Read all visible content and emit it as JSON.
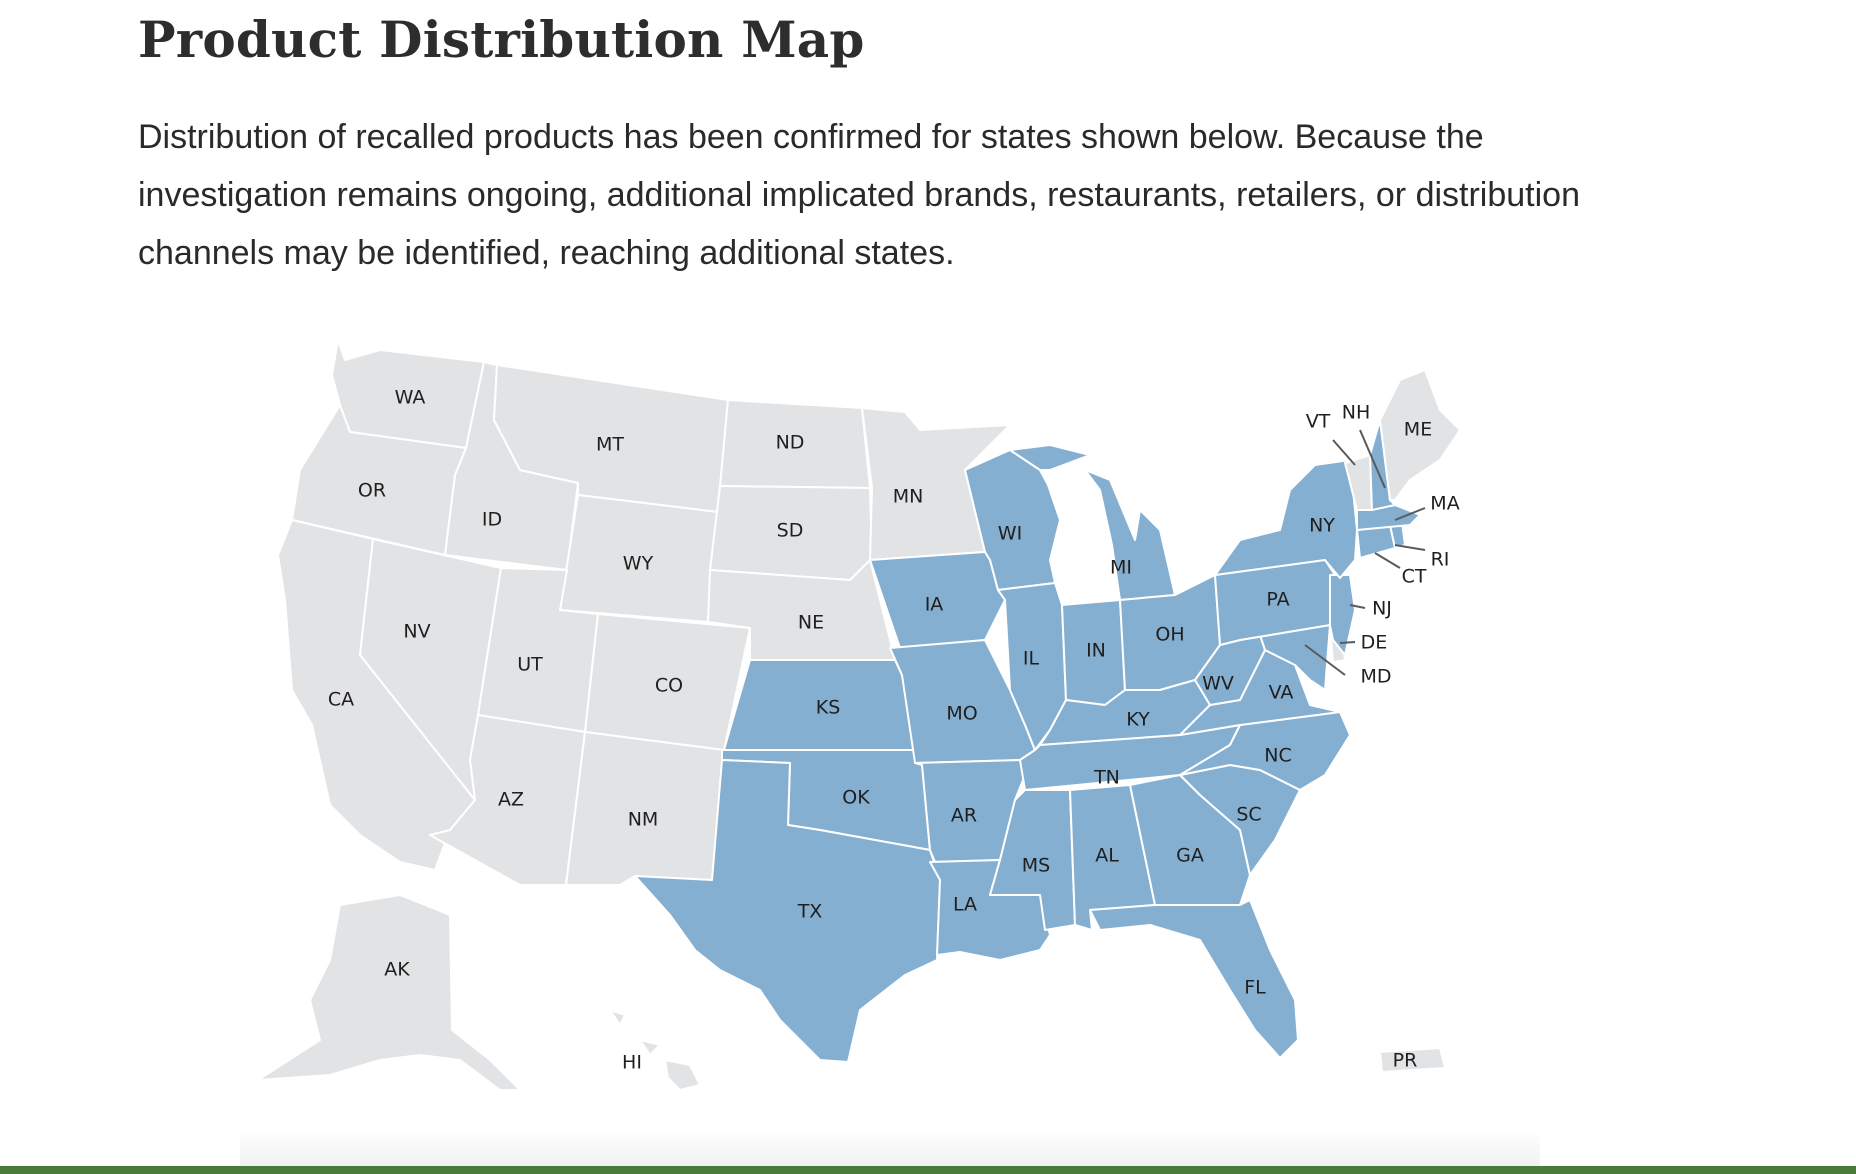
{
  "page": {
    "title": "Product Distribution Map",
    "intro": "Distribution of recalled products has been confirmed for states shown below. Because the investigation remains ongoing, additional implicated brands, restaurants, retailers, or distribution channels may be identified, reaching additional states."
  },
  "map": {
    "colors": {
      "affected": "#85afd1",
      "not_affected": "#e2e3e5",
      "border": "#ffffff"
    },
    "states": [
      {
        "code": "WA",
        "affected": false
      },
      {
        "code": "OR",
        "affected": false
      },
      {
        "code": "CA",
        "affected": false
      },
      {
        "code": "ID",
        "affected": false
      },
      {
        "code": "NV",
        "affected": false
      },
      {
        "code": "MT",
        "affected": false
      },
      {
        "code": "WY",
        "affected": false
      },
      {
        "code": "UT",
        "affected": false
      },
      {
        "code": "AZ",
        "affected": false
      },
      {
        "code": "CO",
        "affected": false
      },
      {
        "code": "NM",
        "affected": false
      },
      {
        "code": "ND",
        "affected": false
      },
      {
        "code": "SD",
        "affected": false
      },
      {
        "code": "NE",
        "affected": false
      },
      {
        "code": "MN",
        "affected": false
      },
      {
        "code": "AK",
        "affected": false
      },
      {
        "code": "HI",
        "affected": false
      },
      {
        "code": "PR",
        "affected": false
      },
      {
        "code": "ME",
        "affected": false
      },
      {
        "code": "VT",
        "affected": false
      },
      {
        "code": "NH",
        "affected": true
      },
      {
        "code": "MA",
        "affected": true
      },
      {
        "code": "RI",
        "affected": true
      },
      {
        "code": "CT",
        "affected": true
      },
      {
        "code": "NY",
        "affected": true
      },
      {
        "code": "NJ",
        "affected": true
      },
      {
        "code": "DE",
        "affected": false
      },
      {
        "code": "MD",
        "affected": true
      },
      {
        "code": "PA",
        "affected": true
      },
      {
        "code": "WV",
        "affected": true
      },
      {
        "code": "VA",
        "affected": true
      },
      {
        "code": "NC",
        "affected": true
      },
      {
        "code": "SC",
        "affected": true
      },
      {
        "code": "GA",
        "affected": true
      },
      {
        "code": "FL",
        "affected": true
      },
      {
        "code": "AL",
        "affected": true
      },
      {
        "code": "MS",
        "affected": true
      },
      {
        "code": "TN",
        "affected": true
      },
      {
        "code": "KY",
        "affected": true
      },
      {
        "code": "OH",
        "affected": true
      },
      {
        "code": "MI",
        "affected": true
      },
      {
        "code": "IN",
        "affected": true
      },
      {
        "code": "IL",
        "affected": true
      },
      {
        "code": "WI",
        "affected": true
      },
      {
        "code": "IA",
        "affected": true
      },
      {
        "code": "MO",
        "affected": true
      },
      {
        "code": "AR",
        "affected": true
      },
      {
        "code": "LA",
        "affected": true
      },
      {
        "code": "KS",
        "affected": true
      },
      {
        "code": "OK",
        "affected": true
      },
      {
        "code": "TX",
        "affected": true
      }
    ]
  }
}
